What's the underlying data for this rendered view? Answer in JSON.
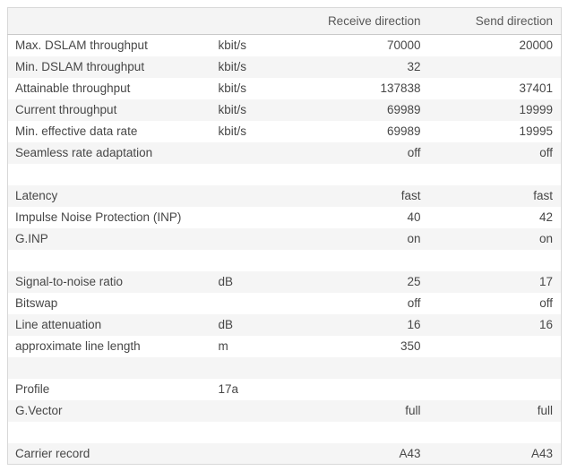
{
  "colors": {
    "page_bg": "#ffffff",
    "table_border": "#d8d8d8",
    "header_bg": "#f4f4f4",
    "header_border": "#c9c9c9",
    "stripe_bg": "#f5f5f5",
    "text": "#474747",
    "header_text": "#585858"
  },
  "table": {
    "columns": {
      "label": "",
      "unit": "",
      "receive": "Receive direction",
      "send": "Send direction"
    },
    "rows": [
      {
        "label": "Max. DSLAM throughput",
        "unit": "kbit/s",
        "receive": "70000",
        "send": "20000"
      },
      {
        "label": "Min. DSLAM throughput",
        "unit": "kbit/s",
        "receive": "32",
        "send": ""
      },
      {
        "label": "Attainable throughput",
        "unit": "kbit/s",
        "receive": "137838",
        "send": "37401"
      },
      {
        "label": "Current throughput",
        "unit": "kbit/s",
        "receive": "69989",
        "send": "19999"
      },
      {
        "label": "Min. effective data rate",
        "unit": "kbit/s",
        "receive": "69989",
        "send": "19995"
      },
      {
        "label": "Seamless rate adaptation",
        "unit": "",
        "receive": "off",
        "send": "off"
      },
      {
        "spacer": true,
        "label": "",
        "unit": "",
        "receive": "",
        "send": ""
      },
      {
        "label": "Latency",
        "unit": "",
        "receive": "fast",
        "send": "fast"
      },
      {
        "label": "Impulse Noise Protection (INP)",
        "unit": "",
        "receive": "40",
        "send": "42"
      },
      {
        "label": "G.INP",
        "unit": "",
        "receive": "on",
        "send": "on"
      },
      {
        "spacer": true,
        "label": "",
        "unit": "",
        "receive": "",
        "send": ""
      },
      {
        "label": "Signal-to-noise ratio",
        "unit": "dB",
        "receive": "25",
        "send": "17"
      },
      {
        "label": "Bitswap",
        "unit": "",
        "receive": "off",
        "send": "off"
      },
      {
        "label": "Line attenuation",
        "unit": "dB",
        "receive": "16",
        "send": "16"
      },
      {
        "label": "approximate line length",
        "unit": "m",
        "receive": "350",
        "send": ""
      },
      {
        "spacer": true,
        "label": "",
        "unit": "",
        "receive": "",
        "send": ""
      },
      {
        "label": "Profile",
        "unit": "17a",
        "receive": "",
        "send": ""
      },
      {
        "label": "G.Vector",
        "unit": "",
        "receive": "full",
        "send": "full"
      },
      {
        "spacer": true,
        "label": "",
        "unit": "",
        "receive": "",
        "send": ""
      },
      {
        "label": "Carrier record",
        "unit": "",
        "receive": "A43",
        "send": "A43"
      }
    ]
  }
}
